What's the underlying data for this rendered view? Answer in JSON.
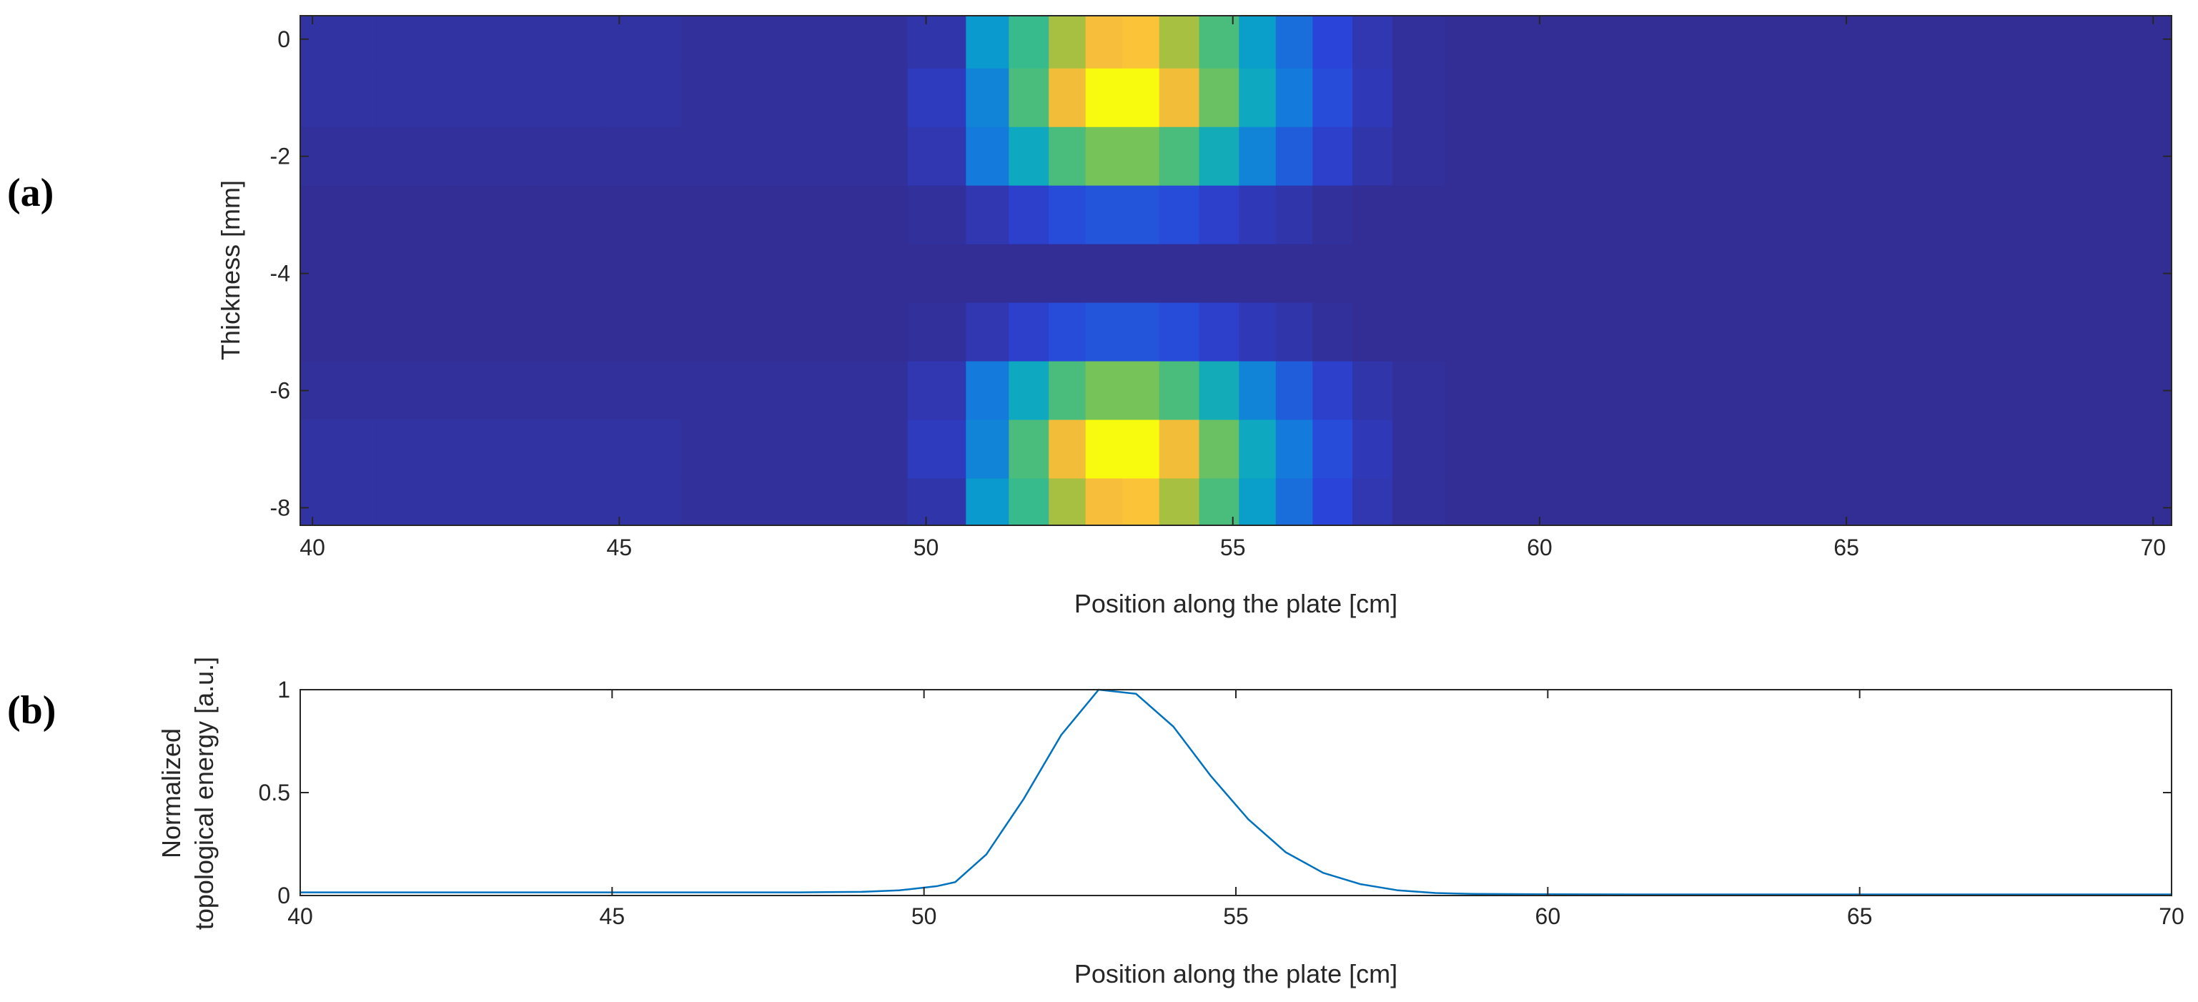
{
  "figure": {
    "panel_a_label": "(a)",
    "panel_b_label": "(b)"
  },
  "chart_data": [
    {
      "type": "heatmap",
      "id": "a",
      "title": "",
      "xlabel": "Position along the plate [cm]",
      "ylabel": "Thickness [mm]",
      "xlim": [
        39.8,
        70.3
      ],
      "ylim": [
        -8.3,
        0.4
      ],
      "xticks": [
        40,
        45,
        50,
        55,
        60,
        65,
        70
      ],
      "yticks": [
        0,
        -2,
        -4,
        -6,
        -8
      ],
      "colormap": "parula",
      "x_cell_centers": [
        40.4,
        41.7,
        42.9,
        44.1,
        45.4,
        46.6,
        47.8,
        49.1,
        50.3,
        51.0,
        51.7,
        52.3,
        52.9,
        53.5,
        54.1,
        54.8,
        55.4,
        56.0,
        56.6,
        57.3,
        57.9,
        59.0,
        60.5,
        62.5,
        64.5,
        66.5,
        68.5,
        70.0
      ],
      "rows": [
        {
          "thickness": 0.0,
          "values": [
            0.04,
            0.04,
            0.04,
            0.04,
            0.04,
            0.03,
            0.03,
            0.03,
            0.05,
            0.35,
            0.52,
            0.7,
            0.86,
            0.88,
            0.7,
            0.55,
            0.36,
            0.22,
            0.12,
            0.06,
            0.03,
            0.02,
            0.02,
            0.02,
            0.02,
            0.02,
            0.02,
            0.02
          ]
        },
        {
          "thickness": -1.0,
          "values": [
            0.04,
            0.04,
            0.04,
            0.04,
            0.04,
            0.03,
            0.03,
            0.03,
            0.08,
            0.28,
            0.55,
            0.85,
            1.0,
            1.0,
            0.85,
            0.6,
            0.4,
            0.25,
            0.14,
            0.07,
            0.03,
            0.02,
            0.02,
            0.02,
            0.02,
            0.02,
            0.02,
            0.02
          ]
        },
        {
          "thickness": -2.0,
          "values": [
            0.03,
            0.03,
            0.03,
            0.03,
            0.03,
            0.03,
            0.03,
            0.03,
            0.06,
            0.25,
            0.4,
            0.55,
            0.62,
            0.62,
            0.55,
            0.42,
            0.28,
            0.18,
            0.1,
            0.05,
            0.03,
            0.02,
            0.02,
            0.02,
            0.02,
            0.02,
            0.02,
            0.02
          ]
        },
        {
          "thickness": -3.0,
          "values": [
            0.02,
            0.02,
            0.02,
            0.02,
            0.02,
            0.02,
            0.02,
            0.02,
            0.03,
            0.06,
            0.1,
            0.14,
            0.16,
            0.16,
            0.14,
            0.1,
            0.07,
            0.05,
            0.03,
            0.02,
            0.02,
            0.02,
            0.02,
            0.02,
            0.02,
            0.02,
            0.02,
            0.02
          ]
        },
        {
          "thickness": -4.0,
          "values": [
            0.02,
            0.02,
            0.02,
            0.02,
            0.02,
            0.02,
            0.02,
            0.02,
            0.02,
            0.02,
            0.02,
            0.02,
            0.02,
            0.02,
            0.02,
            0.02,
            0.02,
            0.02,
            0.02,
            0.02,
            0.02,
            0.02,
            0.02,
            0.02,
            0.02,
            0.02,
            0.02,
            0.02
          ]
        },
        {
          "thickness": -5.0,
          "values": [
            0.02,
            0.02,
            0.02,
            0.02,
            0.02,
            0.02,
            0.02,
            0.02,
            0.03,
            0.06,
            0.1,
            0.14,
            0.16,
            0.16,
            0.14,
            0.1,
            0.07,
            0.05,
            0.03,
            0.02,
            0.02,
            0.02,
            0.02,
            0.02,
            0.02,
            0.02,
            0.02,
            0.02
          ]
        },
        {
          "thickness": -6.0,
          "values": [
            0.03,
            0.03,
            0.03,
            0.03,
            0.03,
            0.03,
            0.03,
            0.03,
            0.06,
            0.25,
            0.4,
            0.55,
            0.62,
            0.62,
            0.55,
            0.42,
            0.28,
            0.18,
            0.1,
            0.05,
            0.03,
            0.02,
            0.02,
            0.02,
            0.02,
            0.02,
            0.02,
            0.02
          ]
        },
        {
          "thickness": -7.0,
          "values": [
            0.04,
            0.04,
            0.04,
            0.04,
            0.04,
            0.03,
            0.03,
            0.03,
            0.08,
            0.28,
            0.55,
            0.85,
            1.0,
            1.0,
            0.85,
            0.6,
            0.4,
            0.25,
            0.14,
            0.07,
            0.03,
            0.02,
            0.02,
            0.02,
            0.02,
            0.02,
            0.02,
            0.02
          ]
        },
        {
          "thickness": -8.0,
          "values": [
            0.04,
            0.04,
            0.04,
            0.04,
            0.04,
            0.03,
            0.03,
            0.03,
            0.05,
            0.35,
            0.52,
            0.7,
            0.86,
            0.88,
            0.7,
            0.55,
            0.36,
            0.22,
            0.12,
            0.06,
            0.03,
            0.02,
            0.02,
            0.02,
            0.02,
            0.02,
            0.02,
            0.02
          ]
        }
      ]
    },
    {
      "type": "line",
      "id": "b",
      "title": "",
      "xlabel": "Position along the plate [cm]",
      "ylabel_line1": "Normalized",
      "ylabel_line2": "topological energy [a.u.]",
      "xlim": [
        40,
        70
      ],
      "ylim": [
        0,
        1
      ],
      "xticks": [
        40,
        45,
        50,
        55,
        60,
        65,
        70
      ],
      "yticks": [
        0,
        0.5,
        1
      ],
      "ytick_labels": [
        "0",
        "0.5",
        "1"
      ],
      "series": [
        {
          "name": "Normalized topological energy",
          "color": "#0072BD",
          "x": [
            40,
            42,
            44,
            46,
            48,
            49,
            49.6,
            50.2,
            50.5,
            51.0,
            51.6,
            52.2,
            52.8,
            53.4,
            54.0,
            54.6,
            55.2,
            55.8,
            56.4,
            57.0,
            57.6,
            58.2,
            58.8,
            60,
            62,
            64,
            66,
            68,
            70
          ],
          "values": [
            0.015,
            0.015,
            0.015,
            0.015,
            0.015,
            0.018,
            0.025,
            0.045,
            0.065,
            0.2,
            0.47,
            0.78,
            1.0,
            0.98,
            0.82,
            0.58,
            0.37,
            0.21,
            0.11,
            0.055,
            0.025,
            0.012,
            0.008,
            0.006,
            0.005,
            0.005,
            0.005,
            0.005,
            0.005
          ]
        }
      ]
    }
  ]
}
